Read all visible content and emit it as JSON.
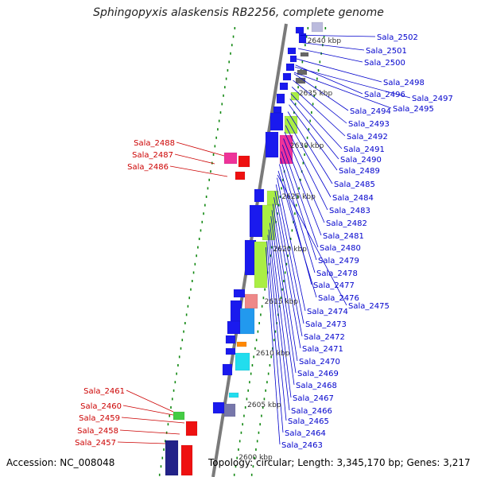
{
  "title": "Sphingopyxis alaskensis RB2256, complete genome",
  "accession_text": "Accession: NC_008048",
  "topology_text": "Topology: circular; Length: 3,345,170 bp; Genes: 3,217",
  "colors": {
    "forward_label": "#0000cc",
    "reverse_label": "#cc0000",
    "forward_gene": "#1a1aee",
    "reverse_gene": "#ee1111",
    "backbone": "#7a7a7a",
    "tick": "#118811",
    "lime": "#aaee44",
    "magenta": "#ee3399",
    "cyan": "#22ddee",
    "orange": "#ff8800",
    "salmon": "#ee8888",
    "navy": "#222288"
  },
  "scale_labels": [
    {
      "text": "2640 kbp"
    },
    {
      "text": "2635 kbp"
    },
    {
      "text": "2630 kbp"
    },
    {
      "text": "2625 kbp"
    },
    {
      "text": "2620 kbp"
    },
    {
      "text": "2615 kbp"
    },
    {
      "text": "2610 kbp"
    },
    {
      "text": "2605 kbp"
    },
    {
      "text": "2600 kbp"
    }
  ],
  "forward_genes": [
    "Sala_2502",
    "Sala_2501",
    "Sala_2500",
    "Sala_2498",
    "Sala_2497",
    "Sala_2496",
    "Sala_2495",
    "Sala_2494",
    "Sala_2493",
    "Sala_2492",
    "Sala_2491",
    "Sala_2490",
    "Sala_2489",
    "Sala_2485",
    "Sala_2484",
    "Sala_2483",
    "Sala_2482",
    "Sala_2481",
    "Sala_2480",
    "Sala_2479",
    "Sala_2478",
    "Sala_2477",
    "Sala_2476",
    "Sala_2475",
    "Sala_2474",
    "Sala_2473",
    "Sala_2472",
    "Sala_2471",
    "Sala_2470",
    "Sala_2469",
    "Sala_2468",
    "Sala_2467",
    "Sala_2466",
    "Sala_2465",
    "Sala_2464",
    "Sala_2463"
  ],
  "reverse_genes": [
    "Sala_2488",
    "Sala_2487",
    "Sala_2486",
    "Sala_2461",
    "Sala_2460",
    "Sala_2459",
    "Sala_2458",
    "Sala_2457"
  ]
}
